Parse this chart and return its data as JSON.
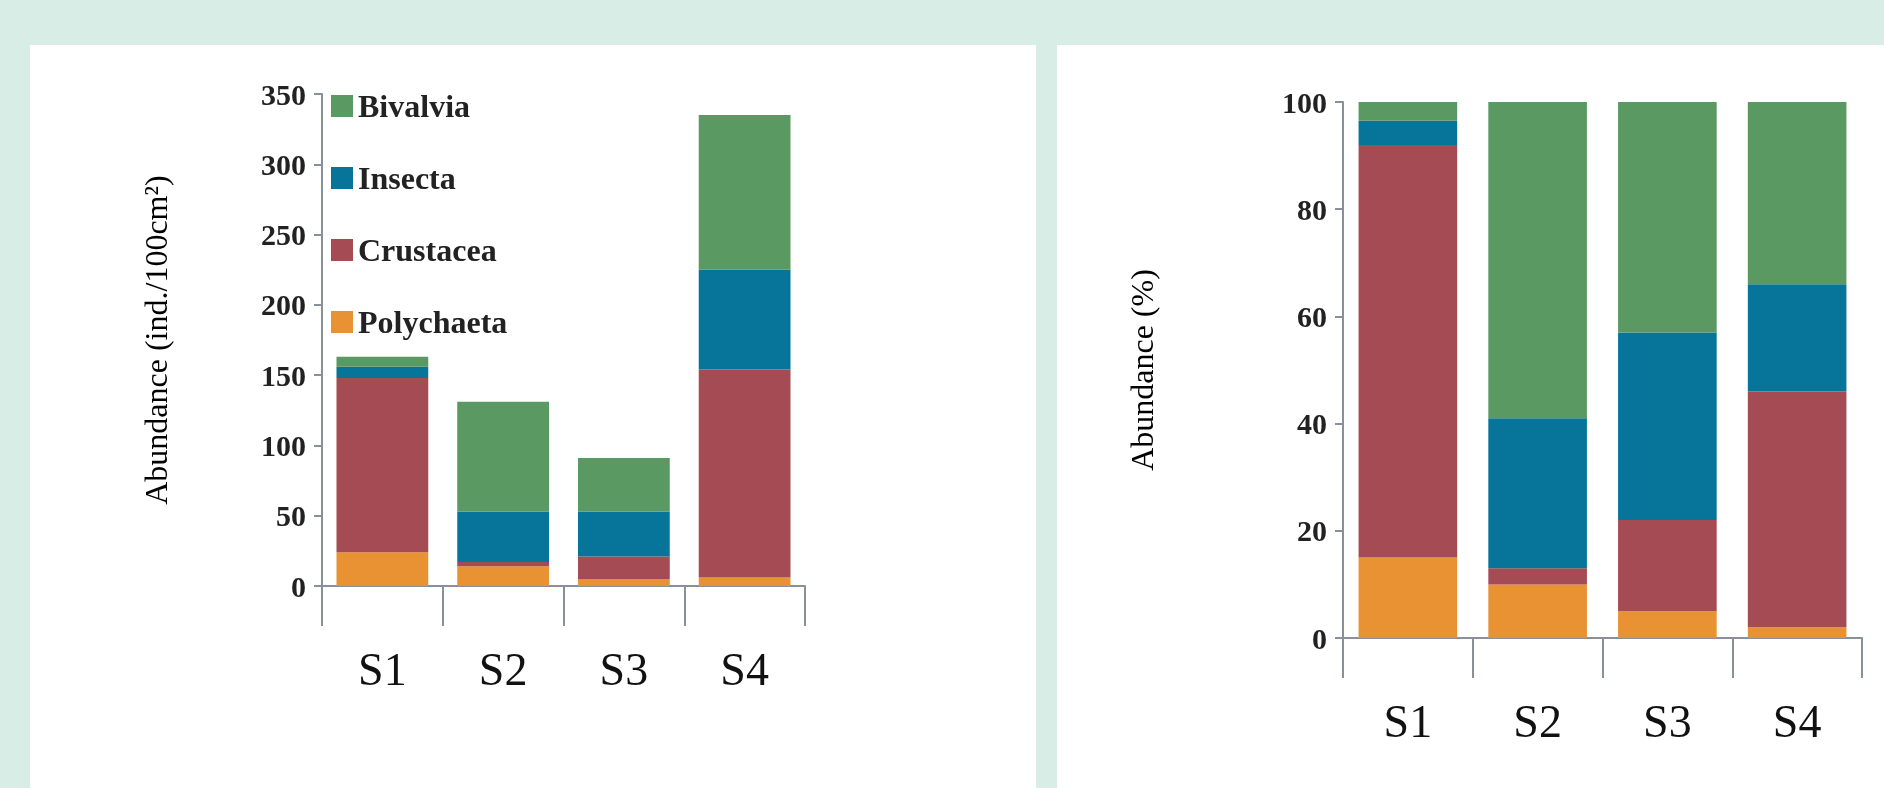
{
  "chart_data": [
    {
      "type": "bar",
      "stacked": true,
      "ylabel": "Abundance (ind./100cm²)",
      "categories": [
        "S1",
        "S2",
        "S3",
        "S4"
      ],
      "ylim": [
        0,
        350
      ],
      "yticks": [
        0,
        50,
        100,
        150,
        200,
        250,
        300,
        350
      ],
      "grid": false,
      "legend": "top",
      "series": [
        {
          "name": "Polychaeta",
          "color": "#e89233",
          "values": [
            24,
            14,
            5,
            6
          ]
        },
        {
          "name": "Crustacea",
          "color": "#a54b54",
          "values": [
            124,
            3,
            16,
            148
          ]
        },
        {
          "name": "Insecta",
          "color": "#077599",
          "values": [
            8,
            36,
            32,
            71
          ]
        },
        {
          "name": "Bivalvia",
          "color": "#5a9a62",
          "values": [
            7,
            78,
            38,
            110
          ]
        }
      ]
    },
    {
      "type": "bar",
      "stacked": true,
      "ylabel": "Abundance (%)",
      "categories": [
        "S1",
        "S2",
        "S3",
        "S4"
      ],
      "ylim": [
        0,
        100
      ],
      "yticks": [
        0,
        20,
        40,
        60,
        80,
        100
      ],
      "grid": false,
      "legend": false,
      "series": [
        {
          "color": "#e89233",
          "values": [
            15,
            10,
            5,
            2
          ]
        },
        {
          "color": "#a54b54",
          "values": [
            77,
            3,
            17,
            44
          ]
        },
        {
          "color": "#077599",
          "values": [
            4.5,
            28,
            35,
            20
          ]
        },
        {
          "color": "#5a9a62",
          "values": [
            3.5,
            59,
            43,
            34
          ]
        }
      ]
    }
  ]
}
